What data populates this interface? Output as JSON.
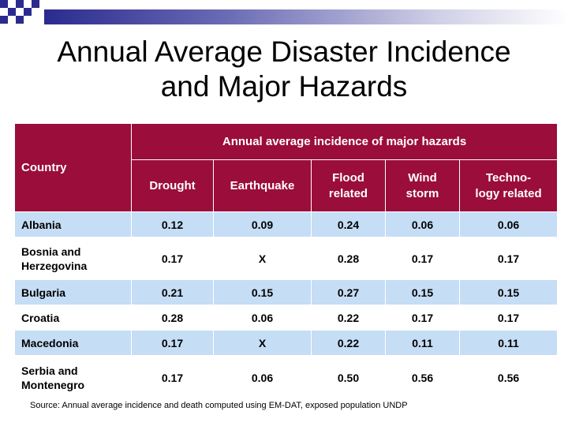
{
  "title": {
    "line1": "Annual Average Disaster Incidence",
    "line2": "and Major Hazards"
  },
  "table": {
    "country_header": "Country",
    "group_header": "Annual average incidence of major hazards",
    "columns": [
      {
        "line1": "Drought",
        "line2": ""
      },
      {
        "line1": "Earthquake",
        "line2": ""
      },
      {
        "line1": "Flood",
        "line2": "related"
      },
      {
        "line1": "Wind",
        "line2": "storm"
      },
      {
        "line1": "Techno-",
        "line2": "logy related"
      }
    ],
    "rows": [
      {
        "country1": "Albania",
        "country2": "",
        "values": [
          "0.12",
          "0.09",
          "0.24",
          "0.06",
          "0.06"
        ]
      },
      {
        "country1": "Bosnia and",
        "country2": "Herzegovina",
        "values": [
          "0.17",
          "X",
          "0.28",
          "0.17",
          "0.17"
        ]
      },
      {
        "country1": "Bulgaria",
        "country2": "",
        "values": [
          "0.21",
          "0.15",
          "0.27",
          "0.15",
          "0.15"
        ]
      },
      {
        "country1": "Croatia",
        "country2": "",
        "values": [
          "0.28",
          "0.06",
          "0.22",
          "0.17",
          "0.17"
        ]
      },
      {
        "country1": "Macedonia",
        "country2": "",
        "values": [
          "0.17",
          "X",
          "0.22",
          "0.11",
          "0.11"
        ]
      },
      {
        "country1": "Serbia and",
        "country2": "Montenegro",
        "values": [
          "0.17",
          "0.06",
          "0.50",
          "0.56",
          "0.56"
        ]
      }
    ]
  },
  "source": "Source: Annual average  incidence and death computed using EM-DAT, exposed population UNDP",
  "colors": {
    "header_bg": "#9b0d3a",
    "alt_row_bg": "#c5ddf5",
    "accent_bar": "#2b2b8f"
  }
}
